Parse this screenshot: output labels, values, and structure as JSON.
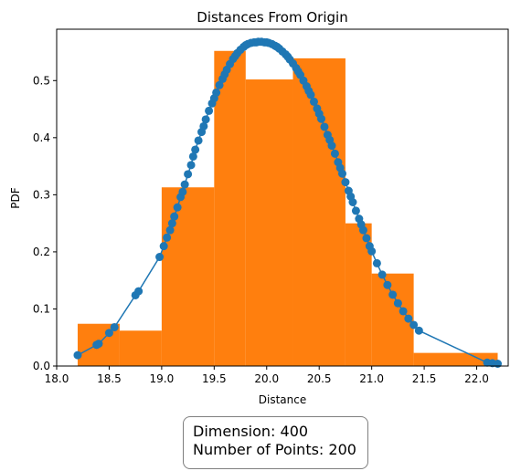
{
  "chart_data": {
    "type": "bar",
    "title": "Distances From Origin",
    "xlabel": "Distance",
    "ylabel": "PDF",
    "xlim": [
      18.0,
      22.3
    ],
    "ylim": [
      0.0,
      0.59
    ],
    "xticks": [
      "18.0",
      "18.5",
      "19.0",
      "19.5",
      "20.0",
      "20.5",
      "21.0",
      "21.5",
      "22.0"
    ],
    "yticks": [
      "0.0",
      "0.1",
      "0.2",
      "0.3",
      "0.4",
      "0.5"
    ],
    "grid": false,
    "histogram": {
      "color": "#ff7f0e",
      "bins": [
        {
          "x0": 18.2,
          "x1": 18.6,
          "value": 0.074
        },
        {
          "x0": 18.6,
          "x1": 19.0,
          "value": 0.062
        },
        {
          "x0": 19.0,
          "x1": 19.5,
          "value": 0.313
        },
        {
          "x0": 19.5,
          "x1": 19.8,
          "value": 0.552
        },
        {
          "x0": 19.8,
          "x1": 20.25,
          "value": 0.502
        },
        {
          "x0": 20.25,
          "x1": 20.75,
          "value": 0.539
        },
        {
          "x0": 20.75,
          "x1": 21.0,
          "value": 0.25
        },
        {
          "x0": 21.0,
          "x1": 21.4,
          "value": 0.162
        },
        {
          "x0": 21.4,
          "x1": 22.2,
          "value": 0.023
        }
      ]
    },
    "curve": {
      "color": "#1f77b4",
      "type": "line-with-markers",
      "x": [
        18.2,
        18.38,
        18.4,
        18.5,
        18.55,
        18.75,
        18.78,
        18.98,
        19.02,
        19.05,
        19.08,
        19.1,
        19.12,
        19.15,
        19.18,
        19.2,
        19.22,
        19.25,
        19.28,
        19.3,
        19.32,
        19.35,
        19.38,
        19.4,
        19.42,
        19.45,
        19.48,
        19.5,
        19.52,
        19.55,
        19.58,
        19.6,
        19.62,
        19.65,
        19.68,
        19.7,
        19.72,
        19.75,
        19.78,
        19.8,
        19.82,
        19.85,
        19.88,
        19.9,
        19.92,
        19.95,
        19.98,
        20.0,
        20.02,
        20.05,
        20.08,
        20.1,
        20.12,
        20.15,
        20.18,
        20.2,
        20.22,
        20.25,
        20.28,
        20.3,
        20.32,
        20.35,
        20.38,
        20.4,
        20.42,
        20.45,
        20.48,
        20.5,
        20.52,
        20.55,
        20.58,
        20.6,
        20.62,
        20.65,
        20.68,
        20.7,
        20.72,
        20.75,
        20.78,
        20.8,
        20.82,
        20.85,
        20.88,
        20.9,
        20.92,
        20.95,
        20.98,
        21.0,
        21.05,
        21.1,
        21.15,
        21.2,
        21.25,
        21.3,
        21.35,
        21.4,
        21.45,
        22.1,
        22.15,
        22.2
      ],
      "y": [
        0.019,
        0.037,
        0.039,
        0.058,
        0.068,
        0.124,
        0.131,
        0.191,
        0.21,
        0.225,
        0.238,
        0.25,
        0.262,
        0.278,
        0.296,
        0.305,
        0.318,
        0.336,
        0.352,
        0.367,
        0.379,
        0.395,
        0.41,
        0.42,
        0.432,
        0.447,
        0.46,
        0.469,
        0.479,
        0.492,
        0.503,
        0.511,
        0.519,
        0.529,
        0.538,
        0.543,
        0.548,
        0.554,
        0.559,
        0.562,
        0.564,
        0.566,
        0.567,
        0.567,
        0.568,
        0.568,
        0.567,
        0.567,
        0.566,
        0.564,
        0.561,
        0.559,
        0.556,
        0.551,
        0.546,
        0.542,
        0.537,
        0.53,
        0.522,
        0.516,
        0.51,
        0.5,
        0.49,
        0.482,
        0.475,
        0.463,
        0.451,
        0.442,
        0.433,
        0.419,
        0.405,
        0.396,
        0.386,
        0.372,
        0.357,
        0.347,
        0.337,
        0.322,
        0.307,
        0.297,
        0.287,
        0.272,
        0.258,
        0.248,
        0.238,
        0.224,
        0.21,
        0.201,
        0.18,
        0.16,
        0.142,
        0.125,
        0.11,
        0.096,
        0.083,
        0.072,
        0.062,
        0.006,
        0.005,
        0.004
      ]
    }
  },
  "annotation": {
    "dimension": "Dimension: 400",
    "points": "Number of Points: 200"
  }
}
